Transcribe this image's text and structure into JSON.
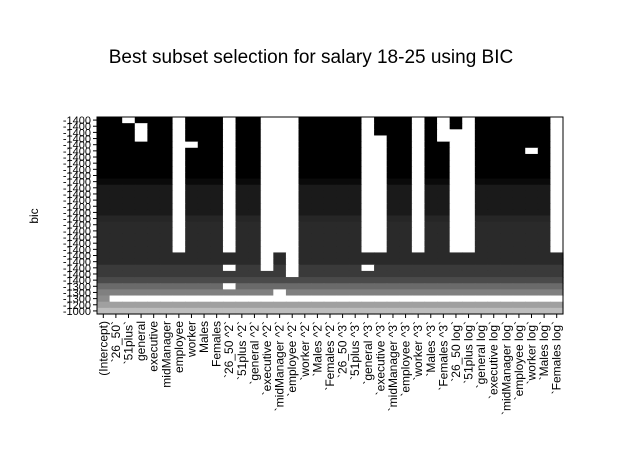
{
  "chart_data": {
    "type": "heatmap",
    "title": "Best subset selection for salary 18-25 using BIC",
    "xlabel": "",
    "ylabel": "bic",
    "y_tick_labels": [
      "-1400",
      "-1400",
      "-1400",
      "-1400",
      "-1400",
      "-1400",
      "-1400",
      "-1400",
      "-1400",
      "-1400",
      "-1400",
      "-1400",
      "-1400",
      "-1400",
      "-1400",
      "-1400",
      "-1400",
      "-1400",
      "-1400",
      "-1400",
      "-1400",
      "-1400",
      "-1400",
      "-1400",
      "-1400",
      "-1400",
      "-1400",
      "-1300",
      "-1300",
      "-1300",
      "-1200",
      "-1000"
    ],
    "variables": [
      "(Intercept)",
      "`26_50`",
      "`51plus`",
      "general",
      "executive",
      "midManager",
      "employee",
      "worker",
      "Males",
      "Females",
      "`26_50 ^2`",
      "`51plus ^2`",
      "`general ^2`",
      "`executive ^2`",
      "`midManager ^2`",
      "`employee ^2`",
      "`worker ^2`",
      "`Males ^2`",
      "`Females ^2`",
      "`26_50 ^3`",
      "`51plus ^3`",
      "`general ^3`",
      "`executive ^3`",
      "`midManager ^3`",
      "`employee ^3`",
      "`worker ^3`",
      "`Males ^3`",
      "`Females ^3`",
      "`26_50 log`",
      "`51plus log`",
      "`general log`",
      "`executive log`",
      "`midManager log`",
      "`employee log`",
      "`worker log`",
      "`Males log`",
      "`Females log`"
    ],
    "band_shades": [
      "#000000",
      "#000000",
      "#000000",
      "#000000",
      "#000000",
      "#000000",
      "#000000",
      "#000000",
      "#000000",
      "#000000",
      "#0a0a0a",
      "#1a1a1a",
      "#1a1a1a",
      "#1a1a1a",
      "#1a1a1a",
      "#1a1a1a",
      "#262626",
      "#2a2a2a",
      "#2a2a2a",
      "#2a2a2a",
      "#2a2a2a",
      "#2a2a2a",
      "#2a2a2a",
      "#2a2a2a",
      "#3a3a3a",
      "#3a3a3a",
      "#4a4a4a",
      "#6a6a6a",
      "#808080",
      "#8c8c8c",
      "#a0a0a0",
      "#bdbdbd"
    ],
    "rows": [
      "1101110111011000111110111010101111110",
      "1110110111011000111110111010101111110",
      "1110110111011000111110111010001111110",
      "1110110111011000111110011010001111110",
      "1111110011011000111110011011001111110",
      "1111110111011000111110011011001111010",
      "1111110111011000111110011011001111110",
      "1111110111011000111110011011001111110",
      "1111110111011000111110011011001111110",
      "1111110111011000111110011011001111110",
      "1111110111011000111110011011001111110",
      "1111110111011000111110011011001111110",
      "1111110111011000111110011011001111110",
      "1111110111011000111110011011001111110",
      "1111110111011000111110011011001111110",
      "1111110111011000111110011011001111110",
      "1111110111011000111110011011001111110",
      "1111110111011000111110011011001111110",
      "1111110111011000111110011011001111110",
      "1111110111011000111110011011001111110",
      "1111110111011000111110011011001111110",
      "1111110111011000111110011011001111110",
      "1111111111111010111111111111111111111",
      "1111111111111010111111111111111111111",
      "1111111111011010111110111111111111111",
      "1111111111111110111111111111111111111",
      "1111111111111111111111111111111111111",
      "1111111111011111111111111111111111111",
      "1111111111111101111111111111111111111",
      "1000000000000000000000000000000000000",
      "1111111111111111111111111111111111111",
      "1111111111111111111111111111111111111"
    ]
  }
}
